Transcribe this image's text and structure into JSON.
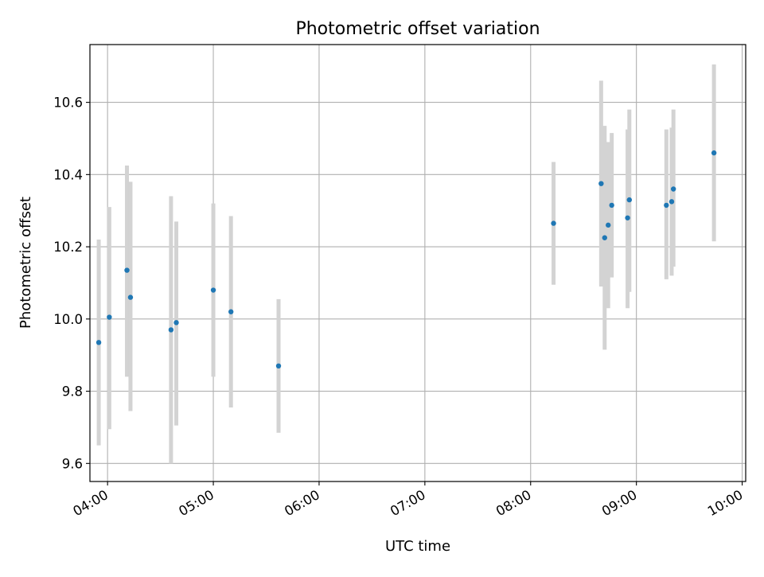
{
  "chart_data": {
    "type": "scatter",
    "title": "Photometric offset variation",
    "xlabel": "UTC time",
    "ylabel": "Photometric offset",
    "x_axis_type": "time",
    "xlim": [
      "03:50",
      "10:02"
    ],
    "ylim": [
      9.55,
      10.76
    ],
    "x_ticks": [
      "04:00",
      "05:00",
      "06:00",
      "07:00",
      "08:00",
      "09:00",
      "10:00"
    ],
    "y_ticks": [
      9.6,
      9.8,
      10.0,
      10.2,
      10.4,
      10.6
    ],
    "y_tick_labels": [
      "9.6",
      "9.8",
      "10.0",
      "10.2",
      "10.4",
      "10.6"
    ],
    "grid": true,
    "legend": "none",
    "marker_color": "#1f77b4",
    "errorbar_color": "#d3d3d3",
    "points": [
      {
        "x": "03:55",
        "y": 9.935,
        "err_low": 9.65,
        "err_high": 10.22
      },
      {
        "x": "04:01",
        "y": 10.005,
        "err_low": 9.695,
        "err_high": 10.31
      },
      {
        "x": "04:11",
        "y": 10.135,
        "err_low": 9.84,
        "err_high": 10.425
      },
      {
        "x": "04:13",
        "y": 10.06,
        "err_low": 9.745,
        "err_high": 10.38
      },
      {
        "x": "04:36",
        "y": 9.97,
        "err_low": 9.6,
        "err_high": 10.34
      },
      {
        "x": "04:39",
        "y": 9.99,
        "err_low": 9.705,
        "err_high": 10.27
      },
      {
        "x": "05:00",
        "y": 10.08,
        "err_low": 9.84,
        "err_high": 10.32
      },
      {
        "x": "05:10",
        "y": 10.02,
        "err_low": 9.755,
        "err_high": 10.285
      },
      {
        "x": "05:37",
        "y": 9.87,
        "err_low": 9.685,
        "err_high": 10.055
      },
      {
        "x": "08:13",
        "y": 10.265,
        "err_low": 10.095,
        "err_high": 10.435
      },
      {
        "x": "08:40",
        "y": 10.375,
        "err_low": 10.09,
        "err_high": 10.66
      },
      {
        "x": "08:42",
        "y": 10.225,
        "err_low": 9.915,
        "err_high": 10.535
      },
      {
        "x": "08:44",
        "y": 10.26,
        "err_low": 10.03,
        "err_high": 10.49
      },
      {
        "x": "08:46",
        "y": 10.315,
        "err_low": 10.115,
        "err_high": 10.515
      },
      {
        "x": "08:55",
        "y": 10.28,
        "err_low": 10.03,
        "err_high": 10.525
      },
      {
        "x": "08:56",
        "y": 10.33,
        "err_low": 10.075,
        "err_high": 10.58
      },
      {
        "x": "09:17",
        "y": 10.315,
        "err_low": 10.11,
        "err_high": 10.525
      },
      {
        "x": "09:20",
        "y": 10.325,
        "err_low": 10.12,
        "err_high": 10.53
      },
      {
        "x": "09:21",
        "y": 10.36,
        "err_low": 10.145,
        "err_high": 10.58
      },
      {
        "x": "09:44",
        "y": 10.46,
        "err_low": 10.215,
        "err_high": 10.705
      }
    ]
  }
}
